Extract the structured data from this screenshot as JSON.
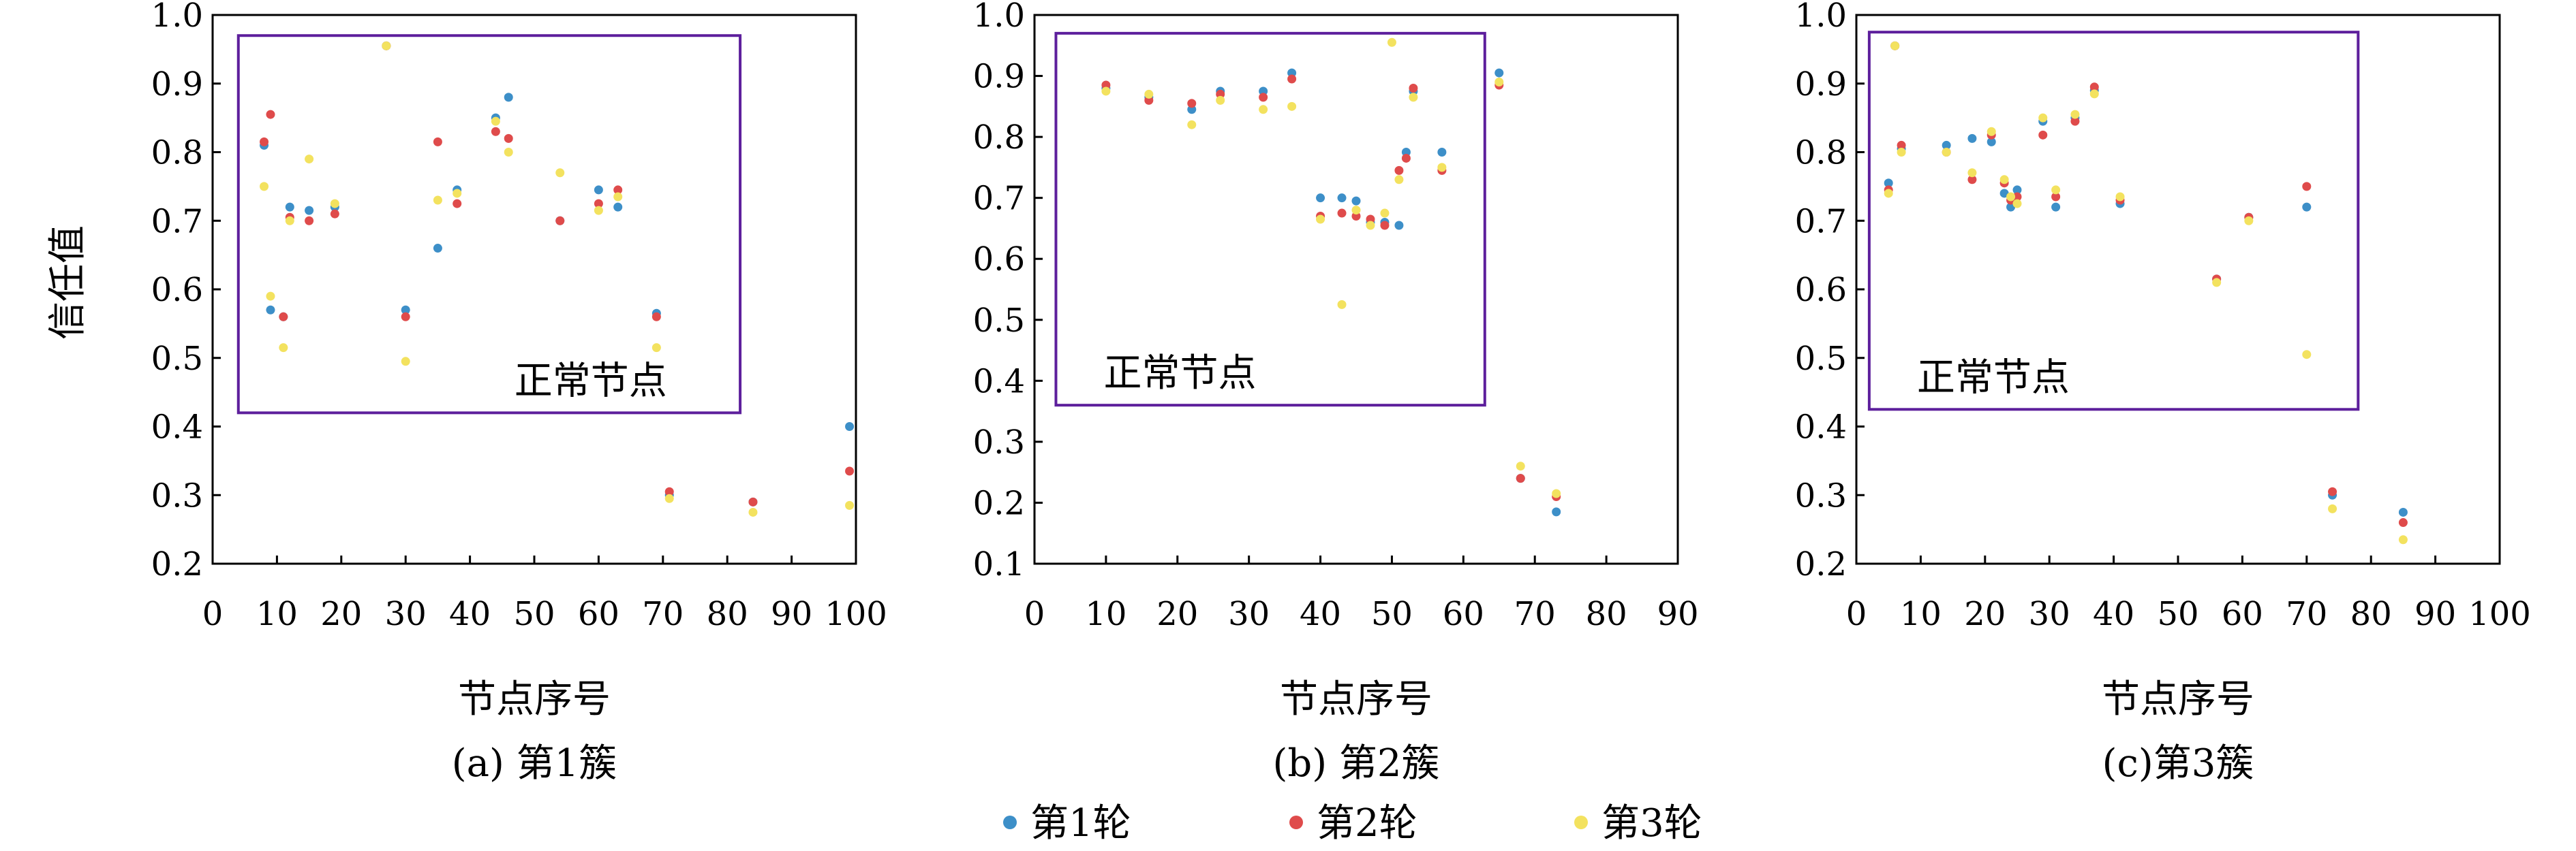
{
  "ylabel": "信任值",
  "xlabel": "节点序号",
  "legend": {
    "placement": "bottom-center",
    "items": [
      {
        "label": "第1轮",
        "color": "#3d8fc8"
      },
      {
        "label": "第2轮",
        "color": "#df4b4b"
      },
      {
        "label": "第3轮",
        "color": "#f3e25f"
      }
    ]
  },
  "region_label": "正常节点",
  "region_color": "#5d1f9c",
  "chart_data": [
    {
      "type": "scatter",
      "caption": "(a) 第1簇",
      "xlim": [
        0,
        100
      ],
      "ylim": [
        0.2,
        1.0
      ],
      "xticks": [
        0,
        10,
        20,
        30,
        40,
        50,
        60,
        70,
        80,
        90,
        100
      ],
      "yticks": [
        0.2,
        0.3,
        0.4,
        0.5,
        0.6,
        0.7,
        0.8,
        0.9,
        1.0
      ],
      "grid": false,
      "region": {
        "label": "正常节点",
        "x": [
          4,
          82
        ],
        "y": [
          0.42,
          0.97
        ]
      },
      "series": [
        {
          "name": "第1轮",
          "color": "#3d8fc8",
          "points": [
            [
              8,
              0.81
            ],
            [
              9,
              0.57
            ],
            [
              11,
              0.56
            ],
            [
              12,
              0.72
            ],
            [
              15,
              0.715
            ],
            [
              19,
              0.72
            ],
            [
              27,
              0.955
            ],
            [
              30,
              0.57
            ],
            [
              35,
              0.66
            ],
            [
              38,
              0.745
            ],
            [
              44,
              0.85
            ],
            [
              46,
              0.88
            ],
            [
              54,
              0.7
            ],
            [
              60,
              0.745
            ],
            [
              63,
              0.72
            ],
            [
              69,
              0.565
            ],
            [
              71,
              0.3
            ],
            [
              84,
              0.29
            ],
            [
              99,
              0.4
            ]
          ]
        },
        {
          "name": "第2轮",
          "color": "#df4b4b",
          "points": [
            [
              8,
              0.815
            ],
            [
              9,
              0.855
            ],
            [
              11,
              0.56
            ],
            [
              12,
              0.705
            ],
            [
              15,
              0.7
            ],
            [
              19,
              0.71
            ],
            [
              27,
              0.955
            ],
            [
              30,
              0.56
            ],
            [
              35,
              0.815
            ],
            [
              38,
              0.725
            ],
            [
              44,
              0.83
            ],
            [
              46,
              0.82
            ],
            [
              54,
              0.7
            ],
            [
              60,
              0.725
            ],
            [
              63,
              0.745
            ],
            [
              69,
              0.56
            ],
            [
              71,
              0.305
            ],
            [
              84,
              0.29
            ],
            [
              99,
              0.335
            ]
          ]
        },
        {
          "name": "第3轮",
          "color": "#f3e25f",
          "points": [
            [
              8,
              0.75
            ],
            [
              9,
              0.59
            ],
            [
              11,
              0.515
            ],
            [
              12,
              0.7
            ],
            [
              15,
              0.79
            ],
            [
              19,
              0.725
            ],
            [
              27,
              0.955
            ],
            [
              30,
              0.495
            ],
            [
              35,
              0.73
            ],
            [
              38,
              0.74
            ],
            [
              44,
              0.845
            ],
            [
              46,
              0.8
            ],
            [
              54,
              0.77
            ],
            [
              60,
              0.715
            ],
            [
              63,
              0.735
            ],
            [
              69,
              0.515
            ],
            [
              71,
              0.295
            ],
            [
              84,
              0.275
            ],
            [
              99,
              0.285
            ]
          ]
        }
      ]
    },
    {
      "type": "scatter",
      "caption": "(b) 第2簇",
      "xlim": [
        0,
        90
      ],
      "ylim": [
        0.1,
        1.0
      ],
      "xticks": [
        0,
        10,
        20,
        30,
        40,
        50,
        60,
        70,
        80,
        90
      ],
      "yticks": [
        0.1,
        0.2,
        0.3,
        0.4,
        0.5,
        0.6,
        0.7,
        0.8,
        0.9,
        1.0
      ],
      "grid": false,
      "region": {
        "label": "正常节点",
        "x": [
          3,
          63
        ],
        "y": [
          0.36,
          0.97
        ]
      },
      "series": [
        {
          "name": "第1轮",
          "color": "#3d8fc8",
          "points": [
            [
              10,
              0.88
            ],
            [
              16,
              0.865
            ],
            [
              22,
              0.845
            ],
            [
              26,
              0.875
            ],
            [
              32,
              0.875
            ],
            [
              36,
              0.905
            ],
            [
              40,
              0.7
            ],
            [
              43,
              0.7
            ],
            [
              45,
              0.695
            ],
            [
              47,
              0.66
            ],
            [
              49,
              0.66
            ],
            [
              51,
              0.655
            ],
            [
              52,
              0.775
            ],
            [
              53,
              0.875
            ],
            [
              57,
              0.775
            ],
            [
              65,
              0.905
            ],
            [
              68,
              0.24
            ],
            [
              73,
              0.185
            ]
          ]
        },
        {
          "name": "第2轮",
          "color": "#df4b4b",
          "points": [
            [
              10,
              0.885
            ],
            [
              16,
              0.86
            ],
            [
              22,
              0.855
            ],
            [
              26,
              0.87
            ],
            [
              32,
              0.865
            ],
            [
              36,
              0.895
            ],
            [
              40,
              0.67
            ],
            [
              43,
              0.675
            ],
            [
              45,
              0.67
            ],
            [
              47,
              0.665
            ],
            [
              49,
              0.655
            ],
            [
              51,
              0.745
            ],
            [
              52,
              0.765
            ],
            [
              53,
              0.88
            ],
            [
              57,
              0.745
            ],
            [
              65,
              0.885
            ],
            [
              68,
              0.24
            ],
            [
              73,
              0.21
            ]
          ]
        },
        {
          "name": "第3轮",
          "color": "#f3e25f",
          "points": [
            [
              10,
              0.875
            ],
            [
              16,
              0.87
            ],
            [
              22,
              0.82
            ],
            [
              26,
              0.86
            ],
            [
              32,
              0.845
            ],
            [
              36,
              0.85
            ],
            [
              40,
              0.665
            ],
            [
              43,
              0.525
            ],
            [
              45,
              0.68
            ],
            [
              47,
              0.655
            ],
            [
              49,
              0.675
            ],
            [
              50,
              0.955
            ],
            [
              51,
              0.73
            ],
            [
              53,
              0.865
            ],
            [
              57,
              0.75
            ],
            [
              65,
              0.89
            ],
            [
              68,
              0.26
            ],
            [
              73,
              0.215
            ]
          ]
        }
      ]
    },
    {
      "type": "scatter",
      "caption": "(c)第3簇",
      "xlim": [
        0,
        100
      ],
      "ylim": [
        0.2,
        1.0
      ],
      "xticks": [
        0,
        10,
        20,
        30,
        40,
        50,
        60,
        70,
        80,
        90,
        100
      ],
      "yticks": [
        0.2,
        0.3,
        0.4,
        0.5,
        0.6,
        0.7,
        0.8,
        0.9,
        1.0
      ],
      "grid": false,
      "region": {
        "label": "正常节点",
        "x": [
          2,
          78
        ],
        "y": [
          0.425,
          0.975
        ]
      },
      "series": [
        {
          "name": "第1轮",
          "color": "#3d8fc8",
          "points": [
            [
              5,
              0.755
            ],
            [
              6,
              0.955
            ],
            [
              7,
              0.805
            ],
            [
              14,
              0.81
            ],
            [
              18,
              0.82
            ],
            [
              21,
              0.815
            ],
            [
              23,
              0.74
            ],
            [
              24,
              0.72
            ],
            [
              25,
              0.745
            ],
            [
              29,
              0.845
            ],
            [
              31,
              0.72
            ],
            [
              34,
              0.85
            ],
            [
              37,
              0.89
            ],
            [
              41,
              0.725
            ],
            [
              56,
              0.615
            ],
            [
              61,
              0.705
            ],
            [
              70,
              0.72
            ],
            [
              74,
              0.3
            ],
            [
              85,
              0.275
            ]
          ]
        },
        {
          "name": "第2轮",
          "color": "#df4b4b",
          "points": [
            [
              5,
              0.745
            ],
            [
              6,
              0.955
            ],
            [
              7,
              0.81
            ],
            [
              14,
              0.8
            ],
            [
              18,
              0.76
            ],
            [
              21,
              0.825
            ],
            [
              23,
              0.755
            ],
            [
              24,
              0.73
            ],
            [
              25,
              0.735
            ],
            [
              29,
              0.825
            ],
            [
              31,
              0.735
            ],
            [
              34,
              0.845
            ],
            [
              37,
              0.895
            ],
            [
              41,
              0.73
            ],
            [
              56,
              0.615
            ],
            [
              61,
              0.705
            ],
            [
              70,
              0.75
            ],
            [
              74,
              0.305
            ],
            [
              85,
              0.26
            ]
          ]
        },
        {
          "name": "第3轮",
          "color": "#f3e25f",
          "points": [
            [
              5,
              0.74
            ],
            [
              6,
              0.955
            ],
            [
              7,
              0.8
            ],
            [
              14,
              0.8
            ],
            [
              18,
              0.77
            ],
            [
              21,
              0.83
            ],
            [
              23,
              0.76
            ],
            [
              24,
              0.735
            ],
            [
              25,
              0.725
            ],
            [
              29,
              0.85
            ],
            [
              31,
              0.745
            ],
            [
              34,
              0.855
            ],
            [
              37,
              0.885
            ],
            [
              41,
              0.735
            ],
            [
              56,
              0.61
            ],
            [
              61,
              0.7
            ],
            [
              70,
              0.505
            ],
            [
              74,
              0.28
            ],
            [
              85,
              0.235
            ]
          ]
        }
      ]
    }
  ]
}
